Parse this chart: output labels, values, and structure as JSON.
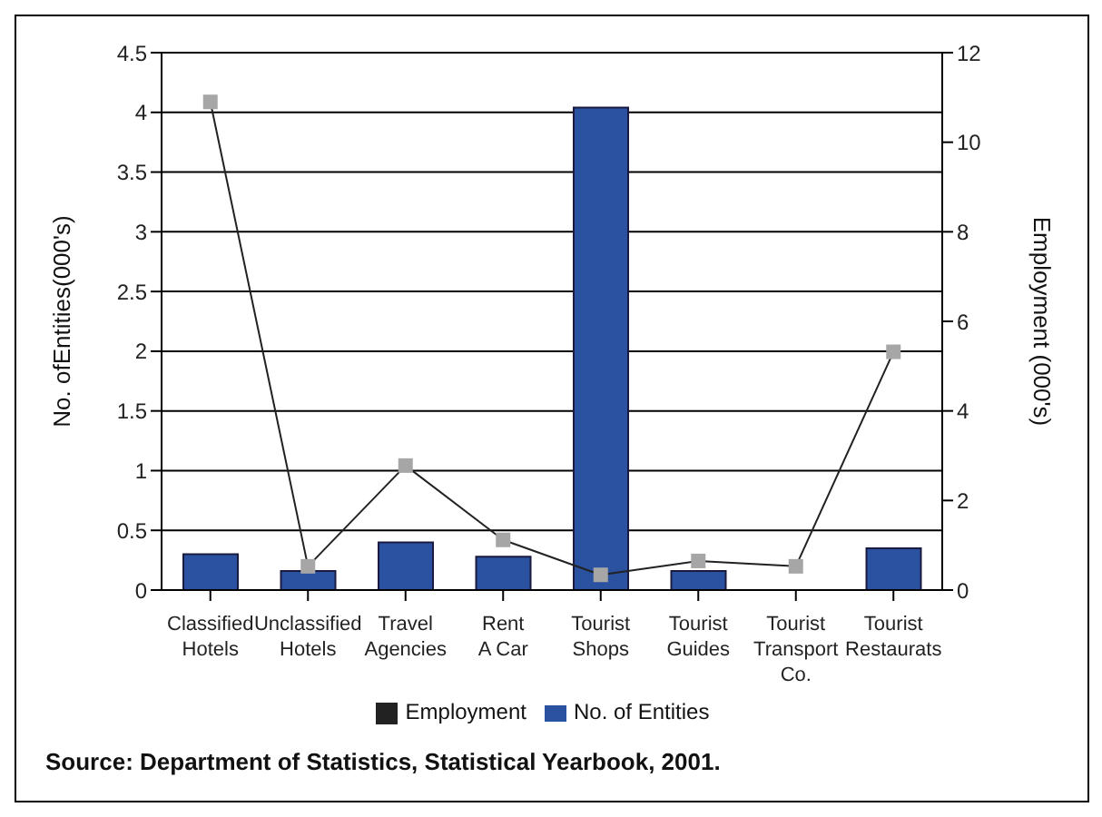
{
  "chart_data": {
    "type": "bar",
    "categories": [
      "Classified\nHotels",
      "Unclassified\nHotels",
      "Travel\nAgencies",
      "Rent\nA  Car",
      "Tourist\nShops",
      "Tourist\nGuides",
      "Tourist\nTransport\nCo.",
      "Tourist\nRestaurats"
    ],
    "series": [
      {
        "name": "No. of Entities",
        "color": "#2a52a0",
        "values": [
          0.3,
          0.16,
          0.4,
          0.28,
          4.04,
          0.16,
          null,
          0.35
        ]
      },
      {
        "name": "Employment",
        "type": "line",
        "axis": "y2",
        "color": "#a6a6a6",
        "marker": "square",
        "values": [
          10.9,
          0.53,
          2.78,
          1.12,
          0.34,
          0.65,
          0.53,
          5.32
        ]
      }
    ],
    "ylabel": "No. ofEntities(000's)",
    "y2label": "Employment  (000's)",
    "ylim": [
      0,
      4.5
    ],
    "yticks": [
      0,
      0.5,
      1,
      1.5,
      2,
      2.5,
      3,
      3.5,
      4,
      4.5
    ],
    "y2lim": [
      0,
      12
    ],
    "y2ticks": [
      0,
      2,
      4,
      6,
      8,
      10,
      12
    ],
    "grid": "y",
    "legend": "bottom",
    "annotations": [
      "Source: Department of Statistics, Statistical Yearbook, 2001."
    ]
  }
}
